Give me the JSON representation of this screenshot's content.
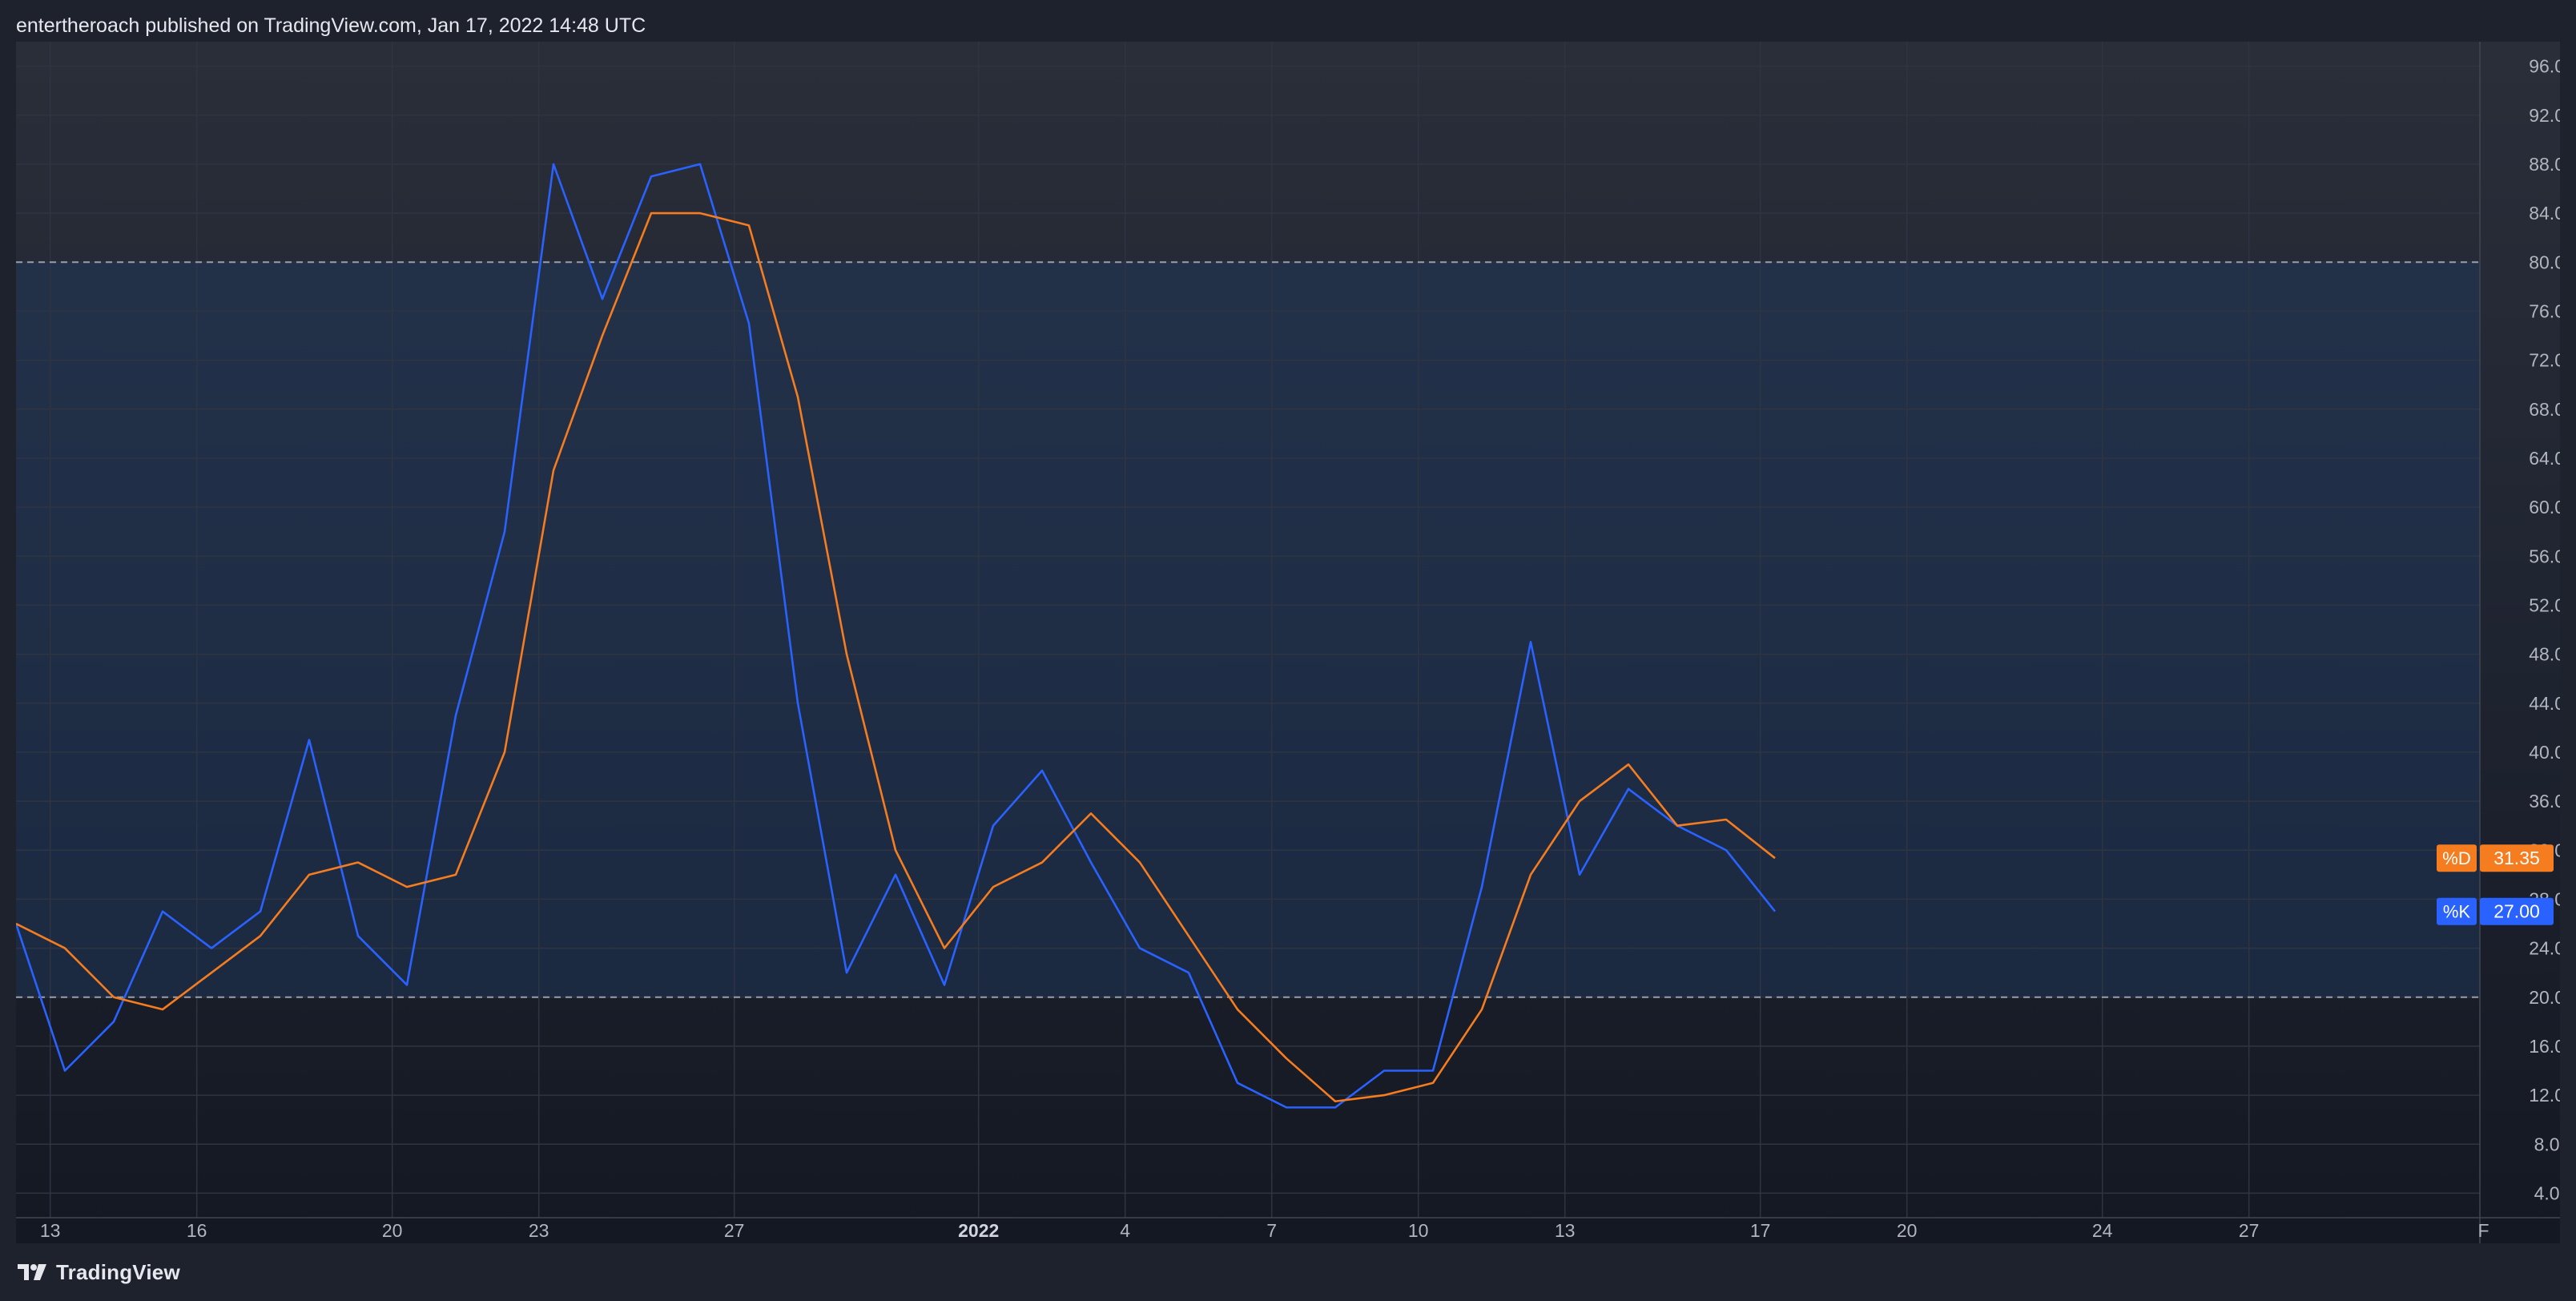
{
  "header": {
    "title": "entertheroach published on TradingView.com, Jan 17, 2022 14:48 UTC"
  },
  "footer": {
    "brand": "TradingView",
    "logo_icon": "tradingview-logo-icon"
  },
  "colors": {
    "k_line": "#2962ff",
    "d_line": "#f57c1f",
    "band_fill": "#1f3a5f",
    "grid": "#2f3443",
    "band_border": "#9aa0ab",
    "axis_text": "#b2b5be",
    "k_badge": "#2962ff",
    "d_badge": "#f57c1f"
  },
  "chart_data": {
    "type": "line",
    "title": "",
    "xlabel": "",
    "ylabel": "",
    "ylim": [
      2,
      98
    ],
    "grid": true,
    "legend": "none",
    "y_ticks": [
      "4.00",
      "8.00",
      "12.00",
      "16.00",
      "20.00",
      "24.00",
      "28.00",
      "32.00",
      "36.00",
      "40.00",
      "44.00",
      "48.00",
      "52.00",
      "56.00",
      "60.00",
      "64.00",
      "68.00",
      "72.00",
      "76.00",
      "80.00",
      "84.00",
      "88.00",
      "92.00",
      "96.00"
    ],
    "x_ticks": [
      {
        "label": "13",
        "index": 0.7,
        "bold": false
      },
      {
        "label": "16",
        "index": 3.7,
        "bold": false
      },
      {
        "label": "20",
        "index": 7.7,
        "bold": false
      },
      {
        "label": "23",
        "index": 10.7,
        "bold": false
      },
      {
        "label": "27",
        "index": 14.7,
        "bold": false
      },
      {
        "label": "2022",
        "index": 19.7,
        "bold": true
      },
      {
        "label": "4",
        "index": 22.7,
        "bold": false
      },
      {
        "label": "7",
        "index": 25.7,
        "bold": false
      },
      {
        "label": "10",
        "index": 28.7,
        "bold": false
      },
      {
        "label": "13",
        "index": 31.7,
        "bold": false
      },
      {
        "label": "17",
        "index": 35.7,
        "bold": false
      },
      {
        "label": "20",
        "index": 38.7,
        "bold": false
      },
      {
        "label": "24",
        "index": 42.7,
        "bold": false
      },
      {
        "label": "27",
        "index": 45.7,
        "bold": false
      },
      {
        "label": "F",
        "index": 50.5,
        "bold": false
      }
    ],
    "x_index_range": [
      0,
      50.5
    ],
    "bands": [
      {
        "name": "upper-band",
        "value": 80
      },
      {
        "name": "lower-band",
        "value": 20
      }
    ],
    "series": [
      {
        "name": "%K",
        "values": [
          26,
          14,
          18,
          27,
          24,
          27,
          41,
          25,
          21,
          43,
          58,
          88,
          77,
          87,
          88,
          75,
          44,
          22,
          30,
          21,
          34,
          38.5,
          31,
          24,
          22,
          13,
          11,
          11,
          14,
          14,
          29,
          49,
          30,
          37,
          34,
          32,
          27
        ]
      },
      {
        "name": "%D",
        "values": [
          26,
          24,
          20,
          19,
          22,
          25,
          30,
          31,
          29,
          30,
          40,
          63,
          74,
          84,
          84,
          83,
          69,
          48,
          32,
          24,
          29,
          31,
          35,
          31,
          25,
          19,
          15,
          11.5,
          12,
          13,
          19,
          30,
          36,
          39,
          34,
          34.5,
          31.35
        ]
      }
    ],
    "last_values": [
      {
        "series": "%D",
        "label": "%D",
        "value_label": "31.35",
        "value": 31.35
      },
      {
        "series": "%K",
        "label": "%K",
        "value_label": "27.00",
        "value": 27.0
      }
    ]
  }
}
